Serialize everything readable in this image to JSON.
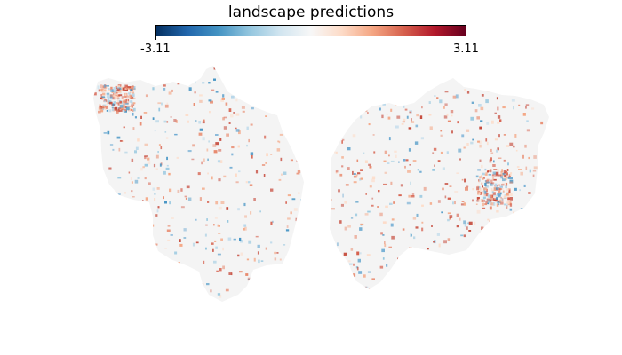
{
  "figure": {
    "title": "landscape predictions"
  },
  "colorbar": {
    "min_label": "-3.11",
    "max_label": "3.11",
    "min_value": -3.11,
    "max_value": 3.11,
    "colormap": [
      "#053061",
      "#2166ac",
      "#4393c3",
      "#92c5de",
      "#d1e5f0",
      "#f7f7f7",
      "#fddbc7",
      "#f4a582",
      "#d6604d",
      "#b2182b",
      "#67001f"
    ]
  },
  "surface": {
    "background_color": "#f4f4f4",
    "positive_color": "#d6604d",
    "negative_color": "#4393c3"
  }
}
